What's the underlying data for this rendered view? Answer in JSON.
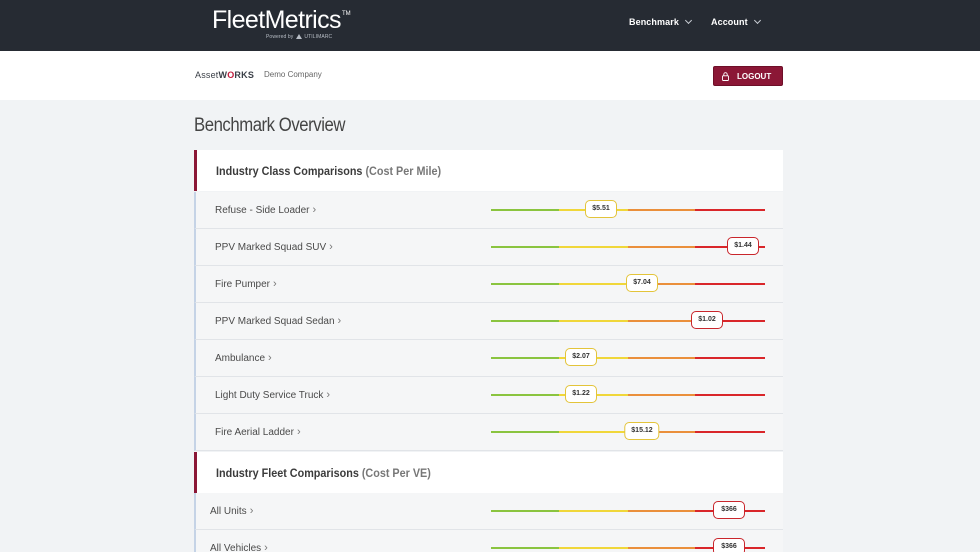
{
  "header": {
    "brand": "FleetMetrics",
    "brand_tm": "TM",
    "brand_sub_prefix": "Powered by",
    "brand_sub_name": "UTILIMARC",
    "nav": [
      {
        "label": "Benchmark"
      },
      {
        "label": "Account"
      }
    ]
  },
  "subheader": {
    "logo_prefix": "Asset",
    "logo_w": "W",
    "logo_o": "O",
    "logo_suffix": "RKS",
    "company": "Demo Company",
    "logout_label": "LOGOUT"
  },
  "page_title": "Benchmark Overview",
  "sections": [
    {
      "title": "Industry Class Comparisons",
      "subtitle": "(Cost Per Mile)",
      "rows": [
        {
          "label": "Refuse - Side Loader",
          "value": "$5.51",
          "level": 0.4,
          "status": "yellow"
        },
        {
          "label": "PPV Marked Squad SUV",
          "value": "$1.44",
          "level": 0.92,
          "status": "red"
        },
        {
          "label": "Fire Pumper",
          "value": "$7.04",
          "level": 0.55,
          "status": "yellow"
        },
        {
          "label": "PPV Marked Squad Sedan",
          "value": "$1.02",
          "level": 0.79,
          "status": "red"
        },
        {
          "label": "Ambulance",
          "value": "$2.07",
          "level": 0.33,
          "status": "yellow"
        },
        {
          "label": "Light Duty Service Truck",
          "value": "$1.22",
          "level": 0.33,
          "status": "yellow"
        },
        {
          "label": "Fire Aerial Ladder",
          "value": "$15.12",
          "level": 0.55,
          "status": "yellow"
        }
      ]
    },
    {
      "title": "Industry Fleet Comparisons",
      "subtitle": "(Cost Per VE)",
      "rows": [
        {
          "label": "All Units",
          "value": "$366",
          "level": 0.87,
          "status": "red"
        },
        {
          "label": "All Vehicles",
          "value": "$366",
          "level": 0.87,
          "status": "red"
        }
      ]
    }
  ],
  "scale_colors": [
    "#8ac43f",
    "#f0d73a",
    "#ea8f3b",
    "#d9262a"
  ],
  "arrow_glyph": "›"
}
